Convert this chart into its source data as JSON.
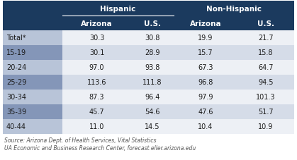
{
  "rows": [
    [
      "Total*",
      "30.3",
      "30.8",
      "19.9",
      "21.7"
    ],
    [
      "15-19",
      "30.1",
      "28.9",
      "15.7",
      "15.8"
    ],
    [
      "20-24",
      "97.0",
      "93.8",
      "67.3",
      "64.7"
    ],
    [
      "25-29",
      "113.6",
      "111.8",
      "96.8",
      "94.5"
    ],
    [
      "30-34",
      "87.3",
      "96.4",
      "97.9",
      "101.3"
    ],
    [
      "35-39",
      "45.7",
      "54.6",
      "47.6",
      "51.7"
    ],
    [
      "40-44",
      "11.0",
      "14.5",
      "10.4",
      "10.9"
    ]
  ],
  "source_line1": "Source: Arizona Dept. of Health Services, Vital Statistics",
  "source_line2": "UA Economic and Business Research Center, forecast.eller.arizona.edu",
  "header_bg": "#1b3a5e",
  "header_text_color": "#ffffff",
  "row_shaded_data_bg": "#d5dce8",
  "row_white_data_bg": "#edf0f5",
  "label_shaded_bg": "#8496b8",
  "label_white_bg": "#b8c4d8",
  "data_text_color": "#1a1a1a",
  "source_text_color": "#555555",
  "shaded_rows": [
    1,
    3,
    5
  ]
}
